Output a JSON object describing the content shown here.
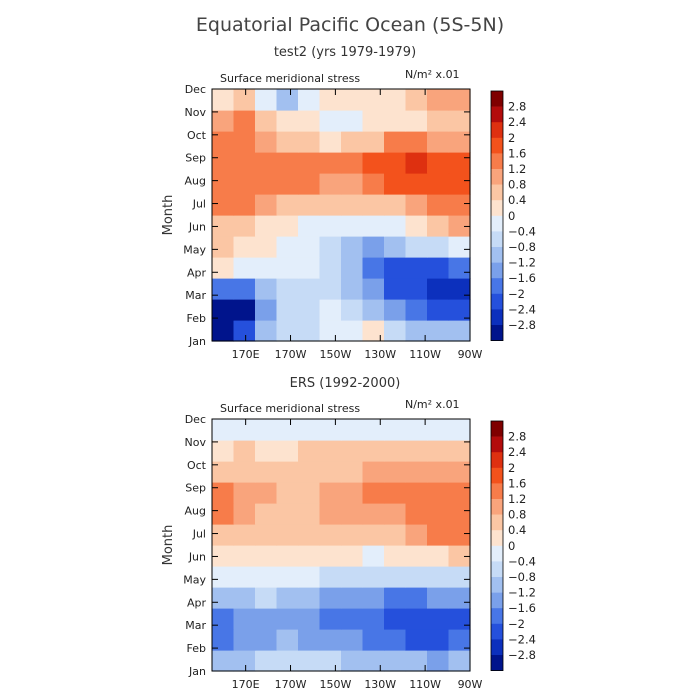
{
  "title": "Equatorial Pacific Ocean (5S-5N)",
  "chart_data": [
    {
      "type": "heatmap",
      "subtitle": "test2 (yrs 1979-1979)",
      "variable": "Surface meridional stress",
      "units": "N/m² x.01",
      "ylabel": "Month",
      "xlabel": "",
      "x_ticks": [
        "170E",
        "170W",
        "150W",
        "130W",
        "110W",
        "90W"
      ],
      "y_ticks": [
        "Jan",
        "Feb",
        "Mar",
        "Apr",
        "May",
        "Jun",
        "Jul",
        "Aug",
        "Sep",
        "Oct",
        "Nov",
        "Dec"
      ],
      "x_range": [
        "~155E",
        "90W"
      ],
      "contour_levels": [
        -2.8,
        -2.4,
        -2,
        -1.6,
        -1.2,
        -0.8,
        -0.4,
        0,
        0.4,
        0.8,
        1.2,
        1.6,
        2,
        2.4,
        2.8
      ],
      "grid_cols": [
        "155E",
        "165E",
        "175E",
        "175W",
        "165W",
        "155W",
        "145W",
        "135W",
        "125W",
        "115W",
        "105W",
        "95W"
      ],
      "values": [
        [
          -3.0,
          -2.2,
          -0.8,
          -0.4,
          -0.4,
          -0.2,
          0.0,
          0.4,
          -0.4,
          -0.8,
          -1.0,
          -0.8
        ],
        [
          -3.0,
          -3.0,
          -1.4,
          -0.6,
          -0.4,
          -0.2,
          -0.4,
          -0.8,
          -1.4,
          -1.8,
          -2.2,
          -2.0
        ],
        [
          -1.6,
          -1.6,
          -1.0,
          -0.4,
          -0.4,
          -0.4,
          -0.8,
          -1.4,
          -2.0,
          -2.2,
          -2.6,
          -2.6
        ],
        [
          0.2,
          -0.2,
          -0.2,
          -0.2,
          -0.2,
          -0.4,
          -1.0,
          -1.8,
          -2.2,
          -2.2,
          -2.0,
          -1.8
        ],
        [
          0.6,
          0.4,
          0.2,
          0.0,
          -0.2,
          -0.6,
          -1.0,
          -1.2,
          -1.0,
          -0.6,
          -0.4,
          -0.2
        ],
        [
          0.8,
          0.6,
          0.4,
          0.2,
          0.0,
          -0.2,
          -0.2,
          -0.2,
          -0.2,
          0.2,
          0.6,
          1.0
        ],
        [
          1.2,
          1.4,
          1.0,
          0.8,
          0.8,
          0.6,
          0.6,
          0.6,
          0.8,
          1.0,
          1.2,
          1.2
        ],
        [
          1.2,
          1.4,
          1.4,
          1.2,
          1.2,
          1.0,
          1.0,
          1.2,
          1.6,
          2.0,
          2.0,
          2.0
        ],
        [
          1.4,
          1.2,
          1.4,
          1.2,
          1.2,
          1.2,
          1.2,
          1.6,
          2.0,
          2.4,
          2.0,
          1.8
        ],
        [
          1.2,
          1.2,
          1.0,
          0.8,
          0.6,
          0.4,
          0.6,
          0.8,
          1.2,
          1.2,
          1.0,
          1.0
        ],
        [
          1.0,
          1.2,
          0.8,
          0.4,
          0.2,
          0.0,
          0.0,
          0.2,
          0.4,
          0.4,
          0.6,
          0.8
        ],
        [
          0.4,
          0.6,
          0.0,
          -0.8,
          0.0,
          0.2,
          0.2,
          0.2,
          0.2,
          0.6,
          1.0,
          1.0
        ]
      ]
    },
    {
      "type": "heatmap",
      "subtitle": "ERS (1992-2000)",
      "variable": "Surface meridional stress",
      "units": "N/m² x.01",
      "ylabel": "Month",
      "xlabel": "",
      "x_ticks": [
        "170E",
        "170W",
        "150W",
        "130W",
        "110W",
        "90W"
      ],
      "y_ticks": [
        "Jan",
        "Feb",
        "Mar",
        "Apr",
        "May",
        "Jun",
        "Jul",
        "Aug",
        "Sep",
        "Oct",
        "Nov",
        "Dec"
      ],
      "x_range": [
        "~155E",
        "90W"
      ],
      "contour_levels": [
        -2.8,
        -2.4,
        -2,
        -1.6,
        -1.2,
        -0.8,
        -0.4,
        0,
        0.4,
        0.8,
        1.2,
        1.6,
        2,
        2.4,
        2.8
      ],
      "grid_cols": [
        "155E",
        "165E",
        "175E",
        "175W",
        "165W",
        "155W",
        "145W",
        "135W",
        "125W",
        "115W",
        "105W",
        "95W"
      ],
      "values": [
        [
          -1.0,
          -0.8,
          -0.6,
          -0.4,
          -0.6,
          -0.6,
          -0.8,
          -0.8,
          -1.0,
          -1.0,
          -1.2,
          -1.0
        ],
        [
          -1.8,
          -1.4,
          -1.2,
          -1.0,
          -1.2,
          -1.4,
          -1.4,
          -1.6,
          -1.8,
          -2.0,
          -2.0,
          -1.8
        ],
        [
          -1.8,
          -1.4,
          -1.2,
          -1.2,
          -1.4,
          -1.6,
          -1.6,
          -1.8,
          -2.0,
          -2.2,
          -2.2,
          -2.0
        ],
        [
          -0.8,
          -0.8,
          -0.6,
          -0.8,
          -1.0,
          -1.2,
          -1.2,
          -1.4,
          -1.6,
          -1.6,
          -1.4,
          -1.2
        ],
        [
          -0.2,
          0.0,
          0.0,
          -0.2,
          -0.2,
          -0.4,
          -0.4,
          -0.4,
          -0.6,
          -0.6,
          -0.6,
          -0.4
        ],
        [
          0.4,
          0.2,
          0.4,
          0.2,
          0.2,
          0.2,
          0.2,
          0.0,
          0.2,
          0.4,
          0.4,
          0.6
        ],
        [
          0.8,
          0.6,
          0.6,
          0.6,
          0.6,
          0.6,
          0.8,
          0.8,
          0.8,
          1.0,
          1.2,
          1.2
        ],
        [
          1.2,
          1.0,
          0.8,
          0.8,
          0.8,
          1.0,
          1.0,
          1.0,
          1.0,
          1.2,
          1.4,
          1.4
        ],
        [
          1.2,
          1.0,
          1.0,
          0.8,
          0.8,
          1.0,
          1.0,
          1.2,
          1.2,
          1.2,
          1.2,
          1.2
        ],
        [
          0.8,
          0.8,
          0.8,
          0.8,
          0.8,
          0.8,
          0.8,
          1.0,
          1.0,
          1.0,
          1.0,
          1.0
        ],
        [
          0.4,
          0.6,
          0.4,
          0.4,
          0.6,
          0.6,
          0.6,
          0.6,
          0.8,
          0.8,
          0.6,
          0.8
        ],
        [
          -0.2,
          0.0,
          0.0,
          0.0,
          0.0,
          0.0,
          -0.2,
          -0.2,
          0.0,
          0.0,
          -0.2,
          0.0
        ]
      ]
    }
  ],
  "colorbar": {
    "labels": [
      "2.8",
      "2.4",
      "2",
      "1.6",
      "1.2",
      "0.8",
      "0.4",
      "0",
      "-0.4",
      "-0.8",
      "-1.2",
      "-1.6",
      "-2",
      "-2.4",
      "-2.8"
    ],
    "colors": [
      "#7f0000",
      "#b30c0c",
      "#de3010",
      "#f3521c",
      "#f77c4a",
      "#f9a47c",
      "#fbc6a4",
      "#fde3cf",
      "#e3eefb",
      "#c6dbf6",
      "#a2c0f0",
      "#7aa0ea",
      "#4876e6",
      "#2550dc",
      "#0c30bd",
      "#00148c"
    ]
  }
}
